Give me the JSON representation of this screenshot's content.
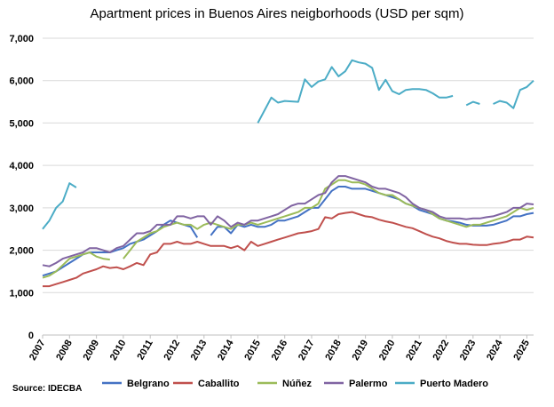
{
  "chart_data": {
    "type": "line",
    "title": "Apartment prices in Buenos Aires neigborhoods (USD per sqm)",
    "source": "Source: IDECBA",
    "x": [
      2007,
      2007.25,
      2007.5,
      2007.75,
      2008,
      2008.25,
      2008.5,
      2008.75,
      2009,
      2009.25,
      2009.5,
      2009.75,
      2010,
      2010.25,
      2010.5,
      2010.75,
      2011,
      2011.25,
      2011.5,
      2011.75,
      2012,
      2012.25,
      2012.5,
      2012.75,
      2013,
      2013.25,
      2013.5,
      2013.75,
      2014,
      2014.25,
      2014.5,
      2014.75,
      2015,
      2015.25,
      2015.5,
      2015.75,
      2016,
      2016.25,
      2016.5,
      2016.75,
      2017,
      2017.25,
      2017.5,
      2017.75,
      2018,
      2018.25,
      2018.5,
      2018.75,
      2019,
      2019.25,
      2019.5,
      2019.75,
      2020,
      2020.25,
      2020.5,
      2020.75,
      2021,
      2021.25,
      2021.5,
      2021.75,
      2022,
      2022.25,
      2022.5,
      2022.75,
      2023,
      2023.25,
      2023.5,
      2023.75,
      2024,
      2024.25,
      2024.5,
      2024.75,
      2025,
      2025.25
    ],
    "xlim": [
      2007,
      2025.25
    ],
    "xticks": [
      2007,
      2008,
      2009,
      2010,
      2011,
      2012,
      2013,
      2014,
      2015,
      2016,
      2017,
      2018,
      2019,
      2020,
      2021,
      2022,
      2023,
      2024,
      2025
    ],
    "ylim": [
      0,
      7000
    ],
    "yticks": [
      0,
      {
        "value": 1000,
        "label": "1,000"
      },
      {
        "value": 2000,
        "label": "2,000"
      },
      {
        "value": 3000,
        "label": "3,000"
      },
      {
        "value": 4000,
        "label": "4,000"
      },
      {
        "value": 5000,
        "label": "5,000"
      },
      {
        "value": 6000,
        "label": "6,000"
      },
      {
        "value": 7000,
        "label": "7,000"
      }
    ],
    "grid": true,
    "series": [
      {
        "name": "Belgrano",
        "color": "#4472c4",
        "values": [
          1400,
          1450,
          1500,
          1600,
          1700,
          1800,
          1900,
          1950,
          1950,
          1950,
          1950,
          2000,
          2050,
          2150,
          2200,
          2250,
          2350,
          2450,
          2600,
          2700,
          2650,
          2600,
          2550,
          2300,
          null,
          2350,
          2550,
          2550,
          2400,
          2600,
          2550,
          2600,
          2550,
          2550,
          2600,
          2700,
          2700,
          2750,
          2800,
          2900,
          3000,
          3000,
          3200,
          3400,
          3500,
          3500,
          3450,
          3450,
          3450,
          3400,
          3350,
          3300,
          3250,
          3200,
          3100,
          3050,
          2950,
          2900,
          2850,
          2750,
          2700,
          2680,
          2650,
          2600,
          2580,
          2580,
          2580,
          2600,
          2650,
          2700,
          2800,
          2800,
          2850,
          2880
        ]
      },
      {
        "name": "Caballito",
        "color": "#c0504d",
        "values": [
          1150,
          1150,
          1200,
          1250,
          1300,
          1350,
          1450,
          1500,
          1550,
          1620,
          1580,
          1600,
          1550,
          1620,
          1700,
          1650,
          1900,
          1950,
          2150,
          2150,
          2200,
          2150,
          2150,
          2200,
          2150,
          2100,
          2100,
          2100,
          2050,
          2100,
          2000,
          2200,
          2100,
          2150,
          2200,
          2250,
          2300,
          2350,
          2400,
          2420,
          2450,
          2500,
          2780,
          2750,
          2850,
          2880,
          2900,
          2850,
          2800,
          2780,
          2720,
          2680,
          2650,
          2600,
          2550,
          2520,
          2450,
          2380,
          2320,
          2280,
          2220,
          2180,
          2150,
          2150,
          2130,
          2120,
          2120,
          2150,
          2170,
          2200,
          2250,
          2250,
          2320,
          2300
        ]
      },
      {
        "name": "Núñez",
        "color": "#9bbb59",
        "values": [
          1350,
          1400,
          1500,
          1650,
          1800,
          1850,
          1900,
          1950,
          1850,
          1800,
          1780,
          null,
          1800,
          2000,
          2200,
          2300,
          2400,
          2450,
          2550,
          2600,
          2650,
          2600,
          2600,
          2500,
          2600,
          2650,
          2600,
          2550,
          2500,
          2600,
          2600,
          2650,
          2600,
          2650,
          2700,
          2750,
          2800,
          2850,
          2900,
          3000,
          3000,
          3100,
          3450,
          3550,
          3650,
          3650,
          3600,
          3600,
          3550,
          3450,
          3350,
          3300,
          3300,
          3200,
          3100,
          3050,
          3000,
          2950,
          2850,
          2750,
          2700,
          2650,
          2600,
          2550,
          2600,
          2600,
          2650,
          2700,
          2750,
          2800,
          2900,
          3000,
          2950,
          3000
        ]
      },
      {
        "name": "Palermo",
        "color": "#8064a2",
        "values": [
          1650,
          1620,
          1700,
          1800,
          1850,
          1900,
          1950,
          2050,
          2050,
          2000,
          1950,
          2050,
          2100,
          2250,
          2400,
          2400,
          2450,
          2600,
          2600,
          2600,
          2800,
          2800,
          2750,
          2800,
          2800,
          2600,
          2800,
          2700,
          2550,
          2650,
          2600,
          2700,
          2700,
          2750,
          2800,
          2850,
          2950,
          3050,
          3100,
          3100,
          3200,
          3300,
          3350,
          3600,
          3750,
          3750,
          3700,
          3650,
          3600,
          3500,
          3450,
          3450,
          3400,
          3350,
          3250,
          3100,
          3000,
          2950,
          2900,
          2800,
          2750,
          2750,
          2750,
          2730,
          2750,
          2750,
          2780,
          2800,
          2850,
          2900,
          3000,
          3000,
          3100,
          3080
        ]
      },
      {
        "name": "Puerto Madero",
        "color": "#4bacc6",
        "values": [
          2500,
          2700,
          3000,
          3150,
          3580,
          3480,
          null,
          null,
          null,
          null,
          null,
          null,
          null,
          null,
          null,
          null,
          null,
          null,
          null,
          null,
          null,
          null,
          null,
          null,
          null,
          null,
          null,
          null,
          null,
          null,
          null,
          null,
          5000,
          5300,
          5600,
          5480,
          5520,
          5510,
          5500,
          6030,
          5850,
          5980,
          6030,
          6320,
          6100,
          6220,
          6480,
          6430,
          6400,
          6300,
          5780,
          6020,
          5750,
          5680,
          5780,
          5800,
          5800,
          5780,
          5700,
          5600,
          5600,
          5640,
          null,
          5420,
          5500,
          5450,
          null,
          5450,
          5520,
          5480,
          5350,
          5780,
          5850,
          6000
        ]
      }
    ]
  }
}
